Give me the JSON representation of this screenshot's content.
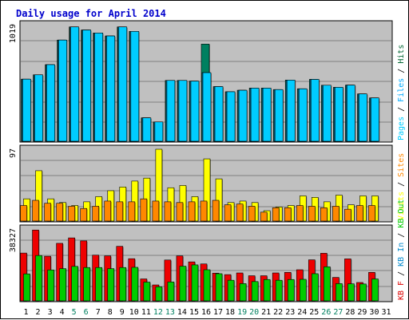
{
  "chart_data": {
    "type": "bar",
    "title": "Daily usage for April 2014",
    "categories": [
      "1",
      "2",
      "3",
      "4",
      "5",
      "6",
      "7",
      "8",
      "9",
      "10",
      "11",
      "12",
      "13",
      "14",
      "15",
      "16",
      "17",
      "18",
      "19",
      "20",
      "21",
      "22",
      "23",
      "24",
      "25",
      "26",
      "27",
      "28",
      "29",
      "30",
      "31"
    ],
    "weekend_days": [
      "5",
      "6",
      "12",
      "13",
      "19",
      "20",
      "26",
      "27"
    ],
    "panels": [
      {
        "name": "top",
        "max_label": "1019",
        "ymax": 1019,
        "legend": [
          {
            "text": "Pages",
            "color": "#00ccff"
          },
          {
            "text": " / ",
            "color": "#000000"
          },
          {
            "text": "Files",
            "color": "#00aaff"
          },
          {
            "text": " / ",
            "color": "#000000"
          },
          {
            "text": "Hits",
            "color": "#006633"
          }
        ],
        "series": [
          {
            "name": "Hits",
            "color": "#008060",
            "values": [
              543,
              581,
              670,
              885,
              1000,
              973,
              947,
              921,
              1000,
              961,
              205,
              169,
              532,
              532,
              526,
              850,
              478,
              433,
              446,
              465,
              465,
              452,
              535,
              459,
              541,
              490,
              472,
              491,
              414,
              379,
              0
            ]
          },
          {
            "name": "Files",
            "color": "#00aaff",
            "values": [
              543,
              581,
              670,
              885,
              1000,
              973,
              947,
              921,
              1000,
              961,
              205,
              169,
              532,
              532,
              526,
              600,
              478,
              433,
              446,
              465,
              465,
              452,
              535,
              459,
              541,
              490,
              472,
              491,
              414,
              379,
              0
            ]
          },
          {
            "name": "Pages",
            "color": "#00ccff",
            "values": [
              543,
              581,
              670,
              885,
              1000,
              973,
              947,
              921,
              1000,
              961,
              205,
              169,
              532,
              532,
              526,
              600,
              478,
              433,
              446,
              465,
              465,
              452,
              535,
              459,
              541,
              490,
              472,
              491,
              414,
              379,
              0
            ]
          }
        ]
      },
      {
        "name": "middle",
        "max_label": "97",
        "ymax": 97,
        "legend": [
          {
            "text": "Visits",
            "color": "#ffff00"
          },
          {
            "text": " / ",
            "color": "#000000"
          },
          {
            "text": "Sites",
            "color": "#ff8800"
          }
        ],
        "series": [
          {
            "name": "Visits",
            "color": "#ffff00",
            "values": [
              30,
              68,
              30,
              25,
              21,
              26,
              33,
              41,
              46,
              54,
              58,
              97,
              45,
              48,
              33,
              84,
              57,
              25,
              27,
              25,
              14,
              19,
              21,
              34,
              32,
              26,
              35,
              22,
              34,
              34,
              0
            ]
          },
          {
            "name": "Sites",
            "color": "#ff8800",
            "values": [
              21,
              28,
              24,
              24,
              20,
              17,
              20,
              27,
              26,
              26,
              30,
              27,
              26,
              25,
              26,
              27,
              28,
              22,
              23,
              20,
              12,
              18,
              18,
              21,
              20,
              18,
              20,
              16,
              21,
              21,
              0
            ]
          }
        ]
      },
      {
        "name": "bottom",
        "max_label": "38327",
        "ymax": 38327,
        "legend": [
          {
            "text": "KB F",
            "color": "#dd0000"
          },
          {
            "text": " / ",
            "color": "#000000"
          },
          {
            "text": "KB In",
            "color": "#0088cc"
          },
          {
            "text": " / ",
            "color": "#000000"
          },
          {
            "text": "KB Out",
            "color": "#00cc00"
          }
        ],
        "series": [
          {
            "name": "KB F",
            "color": "#ee0000",
            "values": [
              25500,
              37800,
              23800,
              30700,
              33600,
              32000,
              24400,
              24000,
              29100,
              22500,
              11700,
              8500,
              21800,
              24000,
              20800,
              19700,
              14800,
              14000,
              14900,
              13400,
              13400,
              14900,
              15200,
              16600,
              21900,
              25400,
              12500,
              22400,
              9800,
              15200,
              0
            ]
          },
          {
            "name": "KB Out",
            "color": "#00cc00",
            "values": [
              14400,
              24200,
              16500,
              17200,
              18400,
              17800,
              17800,
              17200,
              17800,
              17900,
              10000,
              7500,
              10100,
              18500,
              19200,
              16600,
              14500,
              11000,
              9200,
              10300,
              11400,
              11000,
              11400,
              11500,
              14500,
              18200,
              9200,
              9100,
              9000,
              11700,
              0
            ]
          }
        ]
      }
    ]
  }
}
